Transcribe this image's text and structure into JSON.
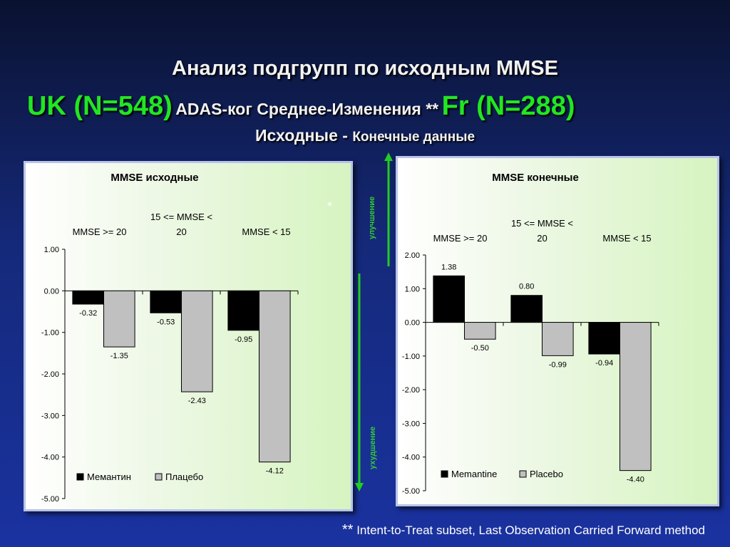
{
  "slide": {
    "title_line1": "Анализ подгрупп по исходным MMSE",
    "uk_label": "UK (N=548)",
    "measure_label": "ADAS-ког   Среднее-Изменения **",
    "fr_label": "Fr (N=288)",
    "subtitle_bold": "Исходные - ",
    "subtitle_rest": "Конечные данные",
    "arrow_up_label": "улучшение",
    "arrow_down_label": "ухудшение",
    "star": "*",
    "footnote_stars": "**",
    "footnote_text": " Intent-to-Treat subset, Last Observation Carried Forward method",
    "colors": {
      "green": "#22e622",
      "bar_dark": "#000000",
      "bar_light": "#c0c0c0"
    }
  },
  "chart_data": [
    {
      "type": "bar",
      "title": "MMSE исходные",
      "categories": [
        "MMSE >= 20",
        "15 <= MMSE < 20",
        "MMSE < 15"
      ],
      "category_label_lines": [
        [
          "",
          "MMSE >= 20"
        ],
        [
          "15 <= MMSE <",
          "20"
        ],
        [
          "",
          "MMSE < 15"
        ]
      ],
      "series": [
        {
          "name": "Мемантин",
          "values": [
            -0.32,
            -0.53,
            -0.95
          ],
          "labels": [
            "-0.32",
            "-0.53",
            "-0.95"
          ],
          "color": "#000000"
        },
        {
          "name": "Плацебо",
          "values": [
            -1.35,
            -2.43,
            -4.12
          ],
          "labels": [
            "-1.35",
            "-2.43",
            "-4.12"
          ],
          "color": "#c0c0c0"
        }
      ],
      "ylim": [
        -5,
        1
      ],
      "yticks": [
        1,
        0,
        -1,
        -2,
        -3,
        -4,
        -5
      ],
      "ytick_labels": [
        "1.00",
        "0.00",
        "-1.00",
        "-2.00",
        "-3.00",
        "-4.00",
        "-5.00"
      ],
      "legend": "bottom-left",
      "grid": false
    },
    {
      "type": "bar",
      "title": "MMSE конечные",
      "categories": [
        "MMSE >= 20",
        "15 <= MMSE < 20",
        "MMSE < 15"
      ],
      "category_label_lines": [
        [
          "",
          "MMSE >= 20"
        ],
        [
          "15 <= MMSE <",
          "20"
        ],
        [
          "",
          "MMSE < 15"
        ]
      ],
      "series": [
        {
          "name": "Memantine",
          "values": [
            1.38,
            0.8,
            -0.94
          ],
          "labels": [
            "1.38",
            "0.80",
            "-0.94"
          ],
          "color": "#000000"
        },
        {
          "name": "Placebo",
          "values": [
            -0.5,
            -0.99,
            -4.4
          ],
          "labels": [
            "-0.50",
            "-0.99",
            "-4.40"
          ],
          "color": "#c0c0c0"
        }
      ],
      "ylim": [
        -5,
        2
      ],
      "yticks": [
        2,
        1,
        0,
        -1,
        -2,
        -3,
        -4,
        -5
      ],
      "ytick_labels": [
        "2.00",
        "1.00",
        "0.00",
        "-1.00",
        "-2.00",
        "-3.00",
        "-4.00",
        "-5.00"
      ],
      "legend": "bottom-left",
      "grid": false
    }
  ]
}
